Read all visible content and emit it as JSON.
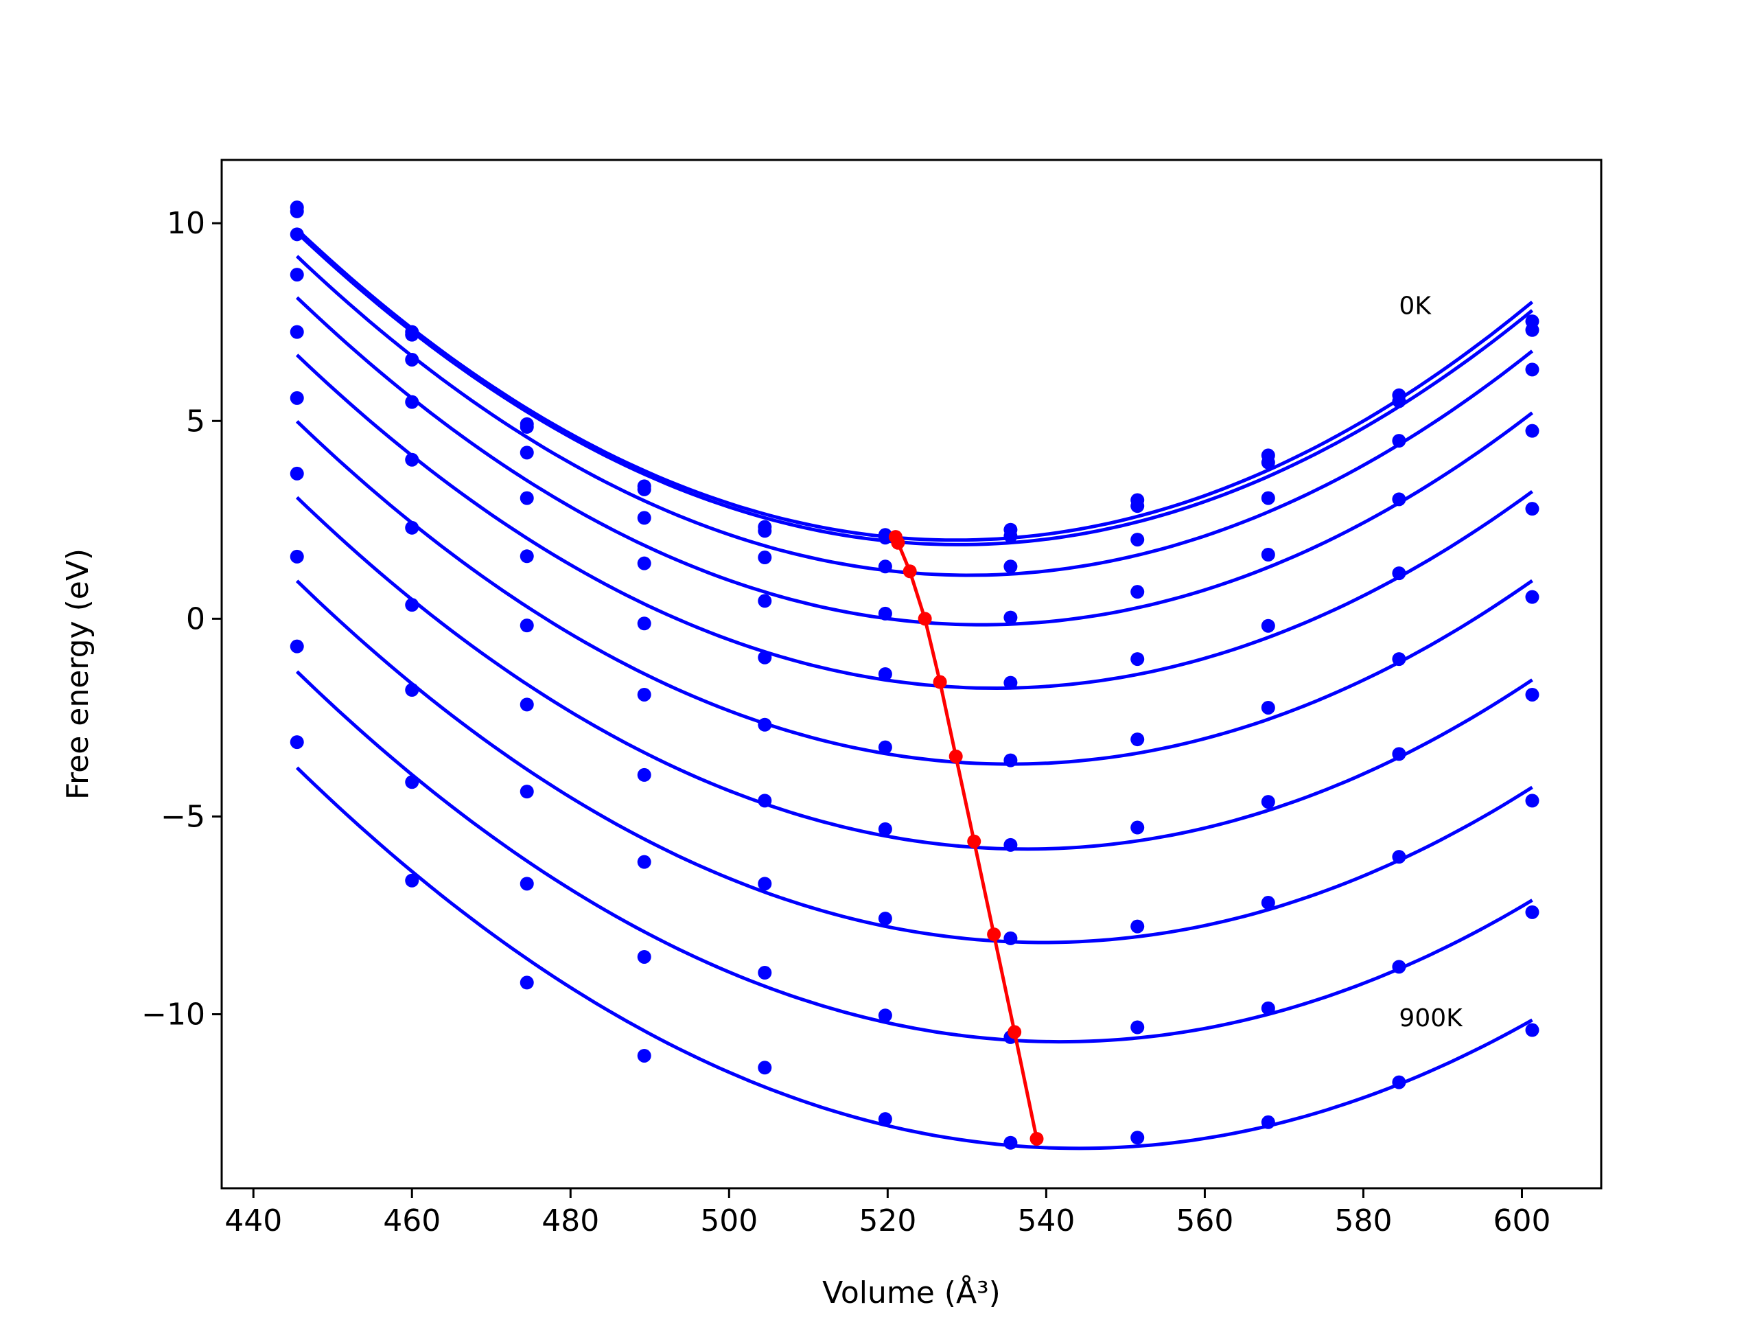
{
  "chart_data": {
    "type": "line",
    "title": "",
    "xlabel": "Volume (Å³)",
    "ylabel": "Free energy (eV)",
    "xlim": [
      436,
      610
    ],
    "ylim": [
      -14.4,
      11.6
    ],
    "xticks": [
      440,
      460,
      480,
      500,
      520,
      540,
      560,
      580,
      600
    ],
    "yticks": [
      -10,
      -5,
      0,
      5,
      10
    ],
    "ytick_labels": [
      "−10",
      "−5",
      "0",
      "5",
      "10"
    ],
    "grid": false,
    "legend": "none",
    "annotations": [
      {
        "text": "0K",
        "x": 584.5,
        "y": 7.7
      },
      {
        "text": "900K",
        "x": 584.5,
        "y": -10.3
      }
    ],
    "colors": {
      "fit": "#0000ff",
      "points": "#0000ff",
      "minima": "#ff0000"
    },
    "volumes": [
      445.5,
      460.0,
      474.5,
      489.3,
      504.5,
      519.7,
      535.5,
      551.5,
      568.0,
      584.5,
      601.3
    ],
    "series": [
      {
        "points": [
          10.4,
          7.25,
          4.92,
          3.35,
          2.32,
          2.12,
          2.25,
          3.0,
          4.13,
          5.65,
          7.52
        ]
      },
      {
        "points": [
          10.3,
          7.18,
          4.85,
          3.27,
          2.22,
          2.05,
          2.09,
          2.85,
          3.95,
          5.5,
          7.3
        ]
      },
      {
        "points": [
          9.72,
          6.55,
          4.2,
          2.55,
          1.55,
          1.32,
          1.32,
          2.0,
          3.05,
          4.5,
          6.3
        ]
      },
      {
        "points": [
          8.7,
          5.48,
          3.05,
          1.4,
          0.45,
          0.13,
          0.03,
          0.68,
          1.62,
          3.02,
          4.75
        ]
      },
      {
        "points": [
          7.25,
          4.02,
          1.58,
          -0.12,
          -0.98,
          -1.4,
          -1.62,
          -1.02,
          -0.18,
          1.15,
          2.78
        ]
      },
      {
        "points": [
          5.58,
          2.3,
          -0.17,
          -1.92,
          -2.68,
          -3.25,
          -3.58,
          -3.05,
          -2.25,
          -1.02,
          0.55
        ]
      },
      {
        "points": [
          3.67,
          0.35,
          -2.17,
          -3.95,
          -4.6,
          -5.32,
          -5.72,
          -5.28,
          -4.63,
          -3.42,
          -1.92
        ]
      },
      {
        "points": [
          1.57,
          -1.8,
          -4.37,
          -6.15,
          -6.7,
          -7.58,
          -8.08,
          -7.78,
          -7.18,
          -6.02,
          -4.6
        ]
      },
      {
        "points": [
          -0.7,
          -4.13,
          -6.7,
          -8.55,
          -8.95,
          -10.03,
          -10.58,
          -10.33,
          -9.85,
          -8.8,
          -7.42
        ]
      },
      {
        "points": [
          -3.12,
          -6.62,
          -9.2,
          -11.05,
          -11.35,
          -12.65,
          -13.25,
          -13.12,
          -12.73,
          -11.72,
          -10.4
        ]
      }
    ],
    "minima": {
      "x": [
        521.0,
        521.3,
        522.8,
        524.7,
        526.6,
        528.6,
        530.9,
        533.4,
        536.0,
        538.8
      ],
      "y": [
        2.07,
        1.92,
        1.2,
        0.0,
        -1.6,
        -3.48,
        -5.63,
        -7.98,
        -10.45,
        -13.15
      ]
    }
  }
}
